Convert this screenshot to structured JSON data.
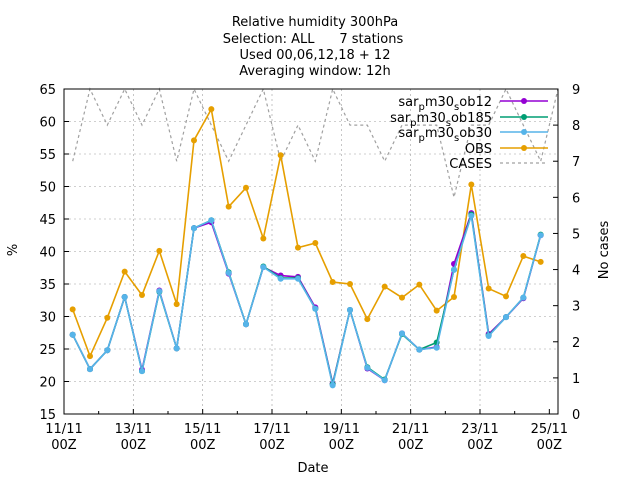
{
  "chart_data": {
    "type": "line",
    "title_lines": [
      "Relative humidity 300hPa",
      "Selection: ALL      7 stations",
      "Used 00,06,12,18 + 12",
      "Averaging window: 12h"
    ],
    "xlabel": "Date",
    "ylabel": "%",
    "y2label": "No cases",
    "ylim": [
      15,
      65
    ],
    "y2lim": [
      0,
      9
    ],
    "yticks": [
      "15",
      "20",
      "25",
      "30",
      "35",
      "40",
      "45",
      "50",
      "55",
      "60",
      "65"
    ],
    "y2ticks": [
      "0",
      "1",
      "2",
      "3",
      "4",
      "5",
      "6",
      "7",
      "8",
      "9"
    ],
    "xlim": [
      0,
      14.25
    ],
    "xticks": [
      {
        "line1": "11/11",
        "line2": "00Z"
      },
      {
        "line1": "13/11",
        "line2": "00Z"
      },
      {
        "line1": "15/11",
        "line2": "00Z"
      },
      {
        "line1": "17/11",
        "line2": "00Z"
      },
      {
        "line1": "19/11",
        "line2": "00Z"
      },
      {
        "line1": "21/11",
        "line2": "00Z"
      },
      {
        "line1": "23/11",
        "line2": "00Z"
      },
      {
        "line1": "25/11",
        "line2": "00Z"
      }
    ],
    "grid": true,
    "legend_position": "top-right",
    "x": [
      0.25,
      0.75,
      1.25,
      1.75,
      2.25,
      2.75,
      3.25,
      3.75,
      4.25,
      4.75,
      5.25,
      5.75,
      6.25,
      6.75,
      7.25,
      7.75,
      8.25,
      8.75,
      9.25,
      9.75,
      10.25,
      10.75,
      11.25,
      11.75,
      12.25,
      12.75,
      13.25,
      13.75,
      14.25
    ],
    "series": [
      {
        "name": "sar_pm30_sob12",
        "color": "#9400d3",
        "axis": "y",
        "values": [
          27.2,
          21.9,
          24.8,
          33,
          21.8,
          34,
          25.1,
          43.6,
          44.5,
          36.6,
          28.8,
          37.6,
          36.3,
          36.1,
          31.4,
          19.7,
          31,
          22,
          20.2,
          27.4,
          24.9,
          25.3,
          38.1,
          45.9,
          27.3,
          29.9,
          32.8,
          42.5,
          null
        ]
      },
      {
        "name": "sar_pm30_sob185",
        "color": "#009e73",
        "axis": "y",
        "values": [
          27.2,
          21.9,
          24.8,
          33,
          21.6,
          33.8,
          25.1,
          43.6,
          44.8,
          36.8,
          28.8,
          37.7,
          35.9,
          35.9,
          31.2,
          19.6,
          31,
          22.2,
          20.3,
          27.3,
          24.9,
          26,
          37.2,
          45.7,
          27.1,
          29.9,
          32.9,
          42.6,
          null
        ]
      },
      {
        "name": "sar_pm30_sob30",
        "color": "#56b4e9",
        "axis": "y",
        "values": [
          27.2,
          21.9,
          24.8,
          33,
          21.6,
          33.9,
          25.1,
          43.6,
          44.8,
          36.7,
          28.8,
          37.6,
          35.8,
          35.8,
          31.2,
          19.4,
          31,
          22.1,
          20.2,
          27.4,
          24.9,
          25.2,
          37.2,
          45.5,
          27,
          29.9,
          32.9,
          42.5,
          null
        ]
      },
      {
        "name": "OBS",
        "color": "#e69f00",
        "axis": "y",
        "values": [
          31.1,
          23.9,
          29.8,
          36.9,
          33.3,
          40.1,
          31.9,
          57.1,
          61.9,
          46.9,
          49.8,
          42.0,
          54.8,
          40.6,
          41.3,
          35.3,
          35.0,
          29.6,
          34.6,
          32.9,
          34.9,
          30.9,
          33.0,
          50.3,
          34.3,
          33.1,
          39.3,
          38.4,
          null
        ]
      },
      {
        "name": "CASES",
        "color": "#a0a0a0",
        "axis": "y2",
        "dashed": true,
        "values": [
          7,
          9,
          8,
          9,
          8,
          9,
          7,
          9,
          8,
          7,
          8,
          9,
          7,
          8,
          7,
          9,
          8,
          8,
          7,
          8,
          8,
          8,
          6,
          8,
          8,
          9,
          8,
          7,
          9
        ]
      }
    ]
  }
}
